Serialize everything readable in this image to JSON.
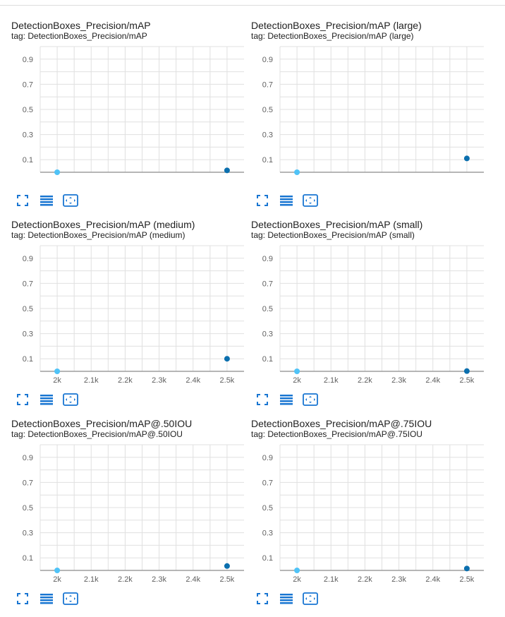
{
  "colors": {
    "accent": "#1976d2",
    "point_dark": "#0b6fae",
    "point_light": "#4fc3f7",
    "grid": "#e0e0e0",
    "axis": "#9e9e9e"
  },
  "toolbar_icons": [
    "fullscreen-icon",
    "toggle-log-scale-icon",
    "fit-domain-icon"
  ],
  "chart_data": [
    {
      "type": "scatter",
      "title": "DetectionBoxes_Precision/mAP",
      "tag": "tag: DetectionBoxes_Precision/mAP",
      "xlim": [
        1950,
        2550
      ],
      "ylim": [
        0,
        1
      ],
      "yticks": [
        "0.9",
        "0.7",
        "0.5",
        "0.3",
        "0.1"
      ],
      "ytick_values": [
        0.9,
        0.7,
        0.5,
        0.3,
        0.1
      ],
      "xticks": [],
      "xtick_values": [],
      "grid": true,
      "points": [
        {
          "x": 2000,
          "y": 0.0
        },
        {
          "x": 2500,
          "y": 0.015
        }
      ]
    },
    {
      "type": "scatter",
      "title": "DetectionBoxes_Precision/mAP (large)",
      "tag": "tag: DetectionBoxes_Precision/mAP (large)",
      "xlim": [
        1950,
        2550
      ],
      "ylim": [
        0,
        1
      ],
      "yticks": [
        "0.9",
        "0.7",
        "0.5",
        "0.3",
        "0.1"
      ],
      "ytick_values": [
        0.9,
        0.7,
        0.5,
        0.3,
        0.1
      ],
      "xticks": [],
      "xtick_values": [],
      "grid": true,
      "points": [
        {
          "x": 2000,
          "y": 0.0
        },
        {
          "x": 2500,
          "y": 0.11
        }
      ]
    },
    {
      "type": "scatter",
      "title": "DetectionBoxes_Precision/mAP (medium)",
      "tag": "tag: DetectionBoxes_Precision/mAP (medium)",
      "xlim": [
        1950,
        2550
      ],
      "ylim": [
        0,
        1
      ],
      "yticks": [
        "0.9",
        "0.7",
        "0.5",
        "0.3",
        "0.1"
      ],
      "ytick_values": [
        0.9,
        0.7,
        0.5,
        0.3,
        0.1
      ],
      "xticks": [
        "2k",
        "2.1k",
        "2.2k",
        "2.3k",
        "2.4k",
        "2.5k"
      ],
      "xtick_values": [
        2000,
        2100,
        2200,
        2300,
        2400,
        2500
      ],
      "grid": true,
      "points": [
        {
          "x": 2000,
          "y": 0.0
        },
        {
          "x": 2500,
          "y": 0.1
        }
      ]
    },
    {
      "type": "scatter",
      "title": "DetectionBoxes_Precision/mAP (small)",
      "tag": "tag: DetectionBoxes_Precision/mAP (small)",
      "xlim": [
        1950,
        2550
      ],
      "ylim": [
        0,
        1
      ],
      "yticks": [
        "0.9",
        "0.7",
        "0.5",
        "0.3",
        "0.1"
      ],
      "ytick_values": [
        0.9,
        0.7,
        0.5,
        0.3,
        0.1
      ],
      "xticks": [
        "2k",
        "2.1k",
        "2.2k",
        "2.3k",
        "2.4k",
        "2.5k"
      ],
      "xtick_values": [
        2000,
        2100,
        2200,
        2300,
        2400,
        2500
      ],
      "grid": true,
      "points": [
        {
          "x": 2000,
          "y": 0.0
        },
        {
          "x": 2500,
          "y": 0.002
        }
      ]
    },
    {
      "type": "scatter",
      "title": "DetectionBoxes_Precision/mAP@.50IOU",
      "tag": "tag: DetectionBoxes_Precision/mAP@.50IOU",
      "xlim": [
        1950,
        2550
      ],
      "ylim": [
        0,
        1
      ],
      "yticks": [
        "0.9",
        "0.7",
        "0.5",
        "0.3",
        "0.1"
      ],
      "ytick_values": [
        0.9,
        0.7,
        0.5,
        0.3,
        0.1
      ],
      "xticks": [
        "2k",
        "2.1k",
        "2.2k",
        "2.3k",
        "2.4k",
        "2.5k"
      ],
      "xtick_values": [
        2000,
        2100,
        2200,
        2300,
        2400,
        2500
      ],
      "grid": true,
      "points": [
        {
          "x": 2000,
          "y": 0.0
        },
        {
          "x": 2500,
          "y": 0.035
        }
      ]
    },
    {
      "type": "scatter",
      "title": "DetectionBoxes_Precision/mAP@.75IOU",
      "tag": "tag: DetectionBoxes_Precision/mAP@.75IOU",
      "xlim": [
        1950,
        2550
      ],
      "ylim": [
        0,
        1
      ],
      "yticks": [
        "0.9",
        "0.7",
        "0.5",
        "0.3",
        "0.1"
      ],
      "ytick_values": [
        0.9,
        0.7,
        0.5,
        0.3,
        0.1
      ],
      "xticks": [
        "2k",
        "2.1k",
        "2.2k",
        "2.3k",
        "2.4k",
        "2.5k"
      ],
      "xtick_values": [
        2000,
        2100,
        2200,
        2300,
        2400,
        2500
      ],
      "grid": true,
      "points": [
        {
          "x": 2000,
          "y": 0.0
        },
        {
          "x": 2500,
          "y": 0.015
        }
      ]
    }
  ]
}
